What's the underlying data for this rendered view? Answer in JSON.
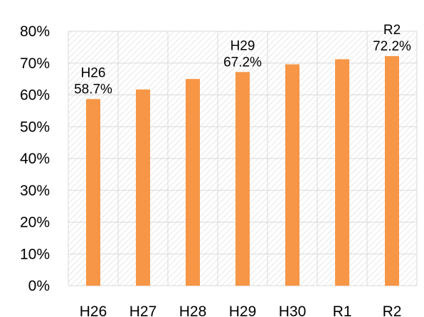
{
  "chart_data": {
    "type": "bar",
    "title": "",
    "xlabel": "",
    "ylabel": "",
    "categories": [
      "H26",
      "H27",
      "H28",
      "H29",
      "H30",
      "R1",
      "R2"
    ],
    "values": [
      58.7,
      61.7,
      65.0,
      67.2,
      69.6,
      71.2,
      72.2
    ],
    "ylim": [
      0,
      80
    ],
    "yticks": [
      0,
      10,
      20,
      30,
      40,
      50,
      60,
      70,
      80
    ],
    "ytick_labels": [
      "0%",
      "10%",
      "20%",
      "30%",
      "40%",
      "50%",
      "60%",
      "70%",
      "80%"
    ],
    "grid": true,
    "bar_color": "#F79646",
    "annotations": [
      {
        "index": 0,
        "category_text": "H26",
        "value_text": "58.7%"
      },
      {
        "index": 3,
        "category_text": "H29",
        "value_text": "67.2%"
      },
      {
        "index": 6,
        "category_text": "R2",
        "value_text": "72.2%"
      }
    ]
  }
}
